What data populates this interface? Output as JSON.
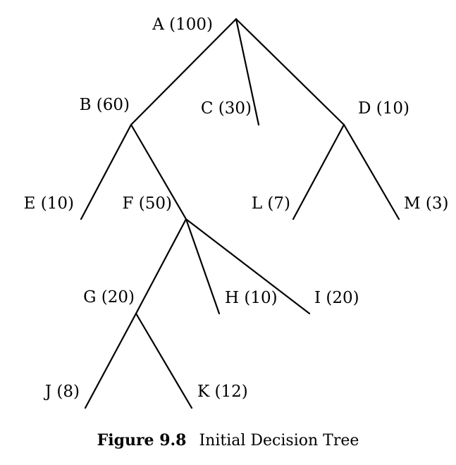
{
  "tree": {
    "nodes": [
      {
        "id": "A",
        "label": "A (100)"
      },
      {
        "id": "B",
        "label": "B (60)"
      },
      {
        "id": "C",
        "label": "C (30)"
      },
      {
        "id": "D",
        "label": "D (10)"
      },
      {
        "id": "E",
        "label": "E (10)"
      },
      {
        "id": "F",
        "label": "F (50)"
      },
      {
        "id": "L",
        "label": "L (7)"
      },
      {
        "id": "M",
        "label": "M (3)"
      },
      {
        "id": "G",
        "label": "G (20)"
      },
      {
        "id": "H",
        "label": "H (10)"
      },
      {
        "id": "I",
        "label": "I (20)"
      },
      {
        "id": "J",
        "label": "J (8)"
      },
      {
        "id": "K",
        "label": "K (12)"
      }
    ],
    "edges": [
      [
        "A",
        "B"
      ],
      [
        "A",
        "C"
      ],
      [
        "A",
        "D"
      ],
      [
        "B",
        "E"
      ],
      [
        "B",
        "F"
      ],
      [
        "D",
        "L"
      ],
      [
        "D",
        "M"
      ],
      [
        "F",
        "G"
      ],
      [
        "F",
        "H"
      ],
      [
        "F",
        "I"
      ],
      [
        "G",
        "J"
      ],
      [
        "G",
        "K"
      ]
    ]
  },
  "caption": {
    "number": "Figure 9.8",
    "text": "Initial Decision Tree"
  }
}
